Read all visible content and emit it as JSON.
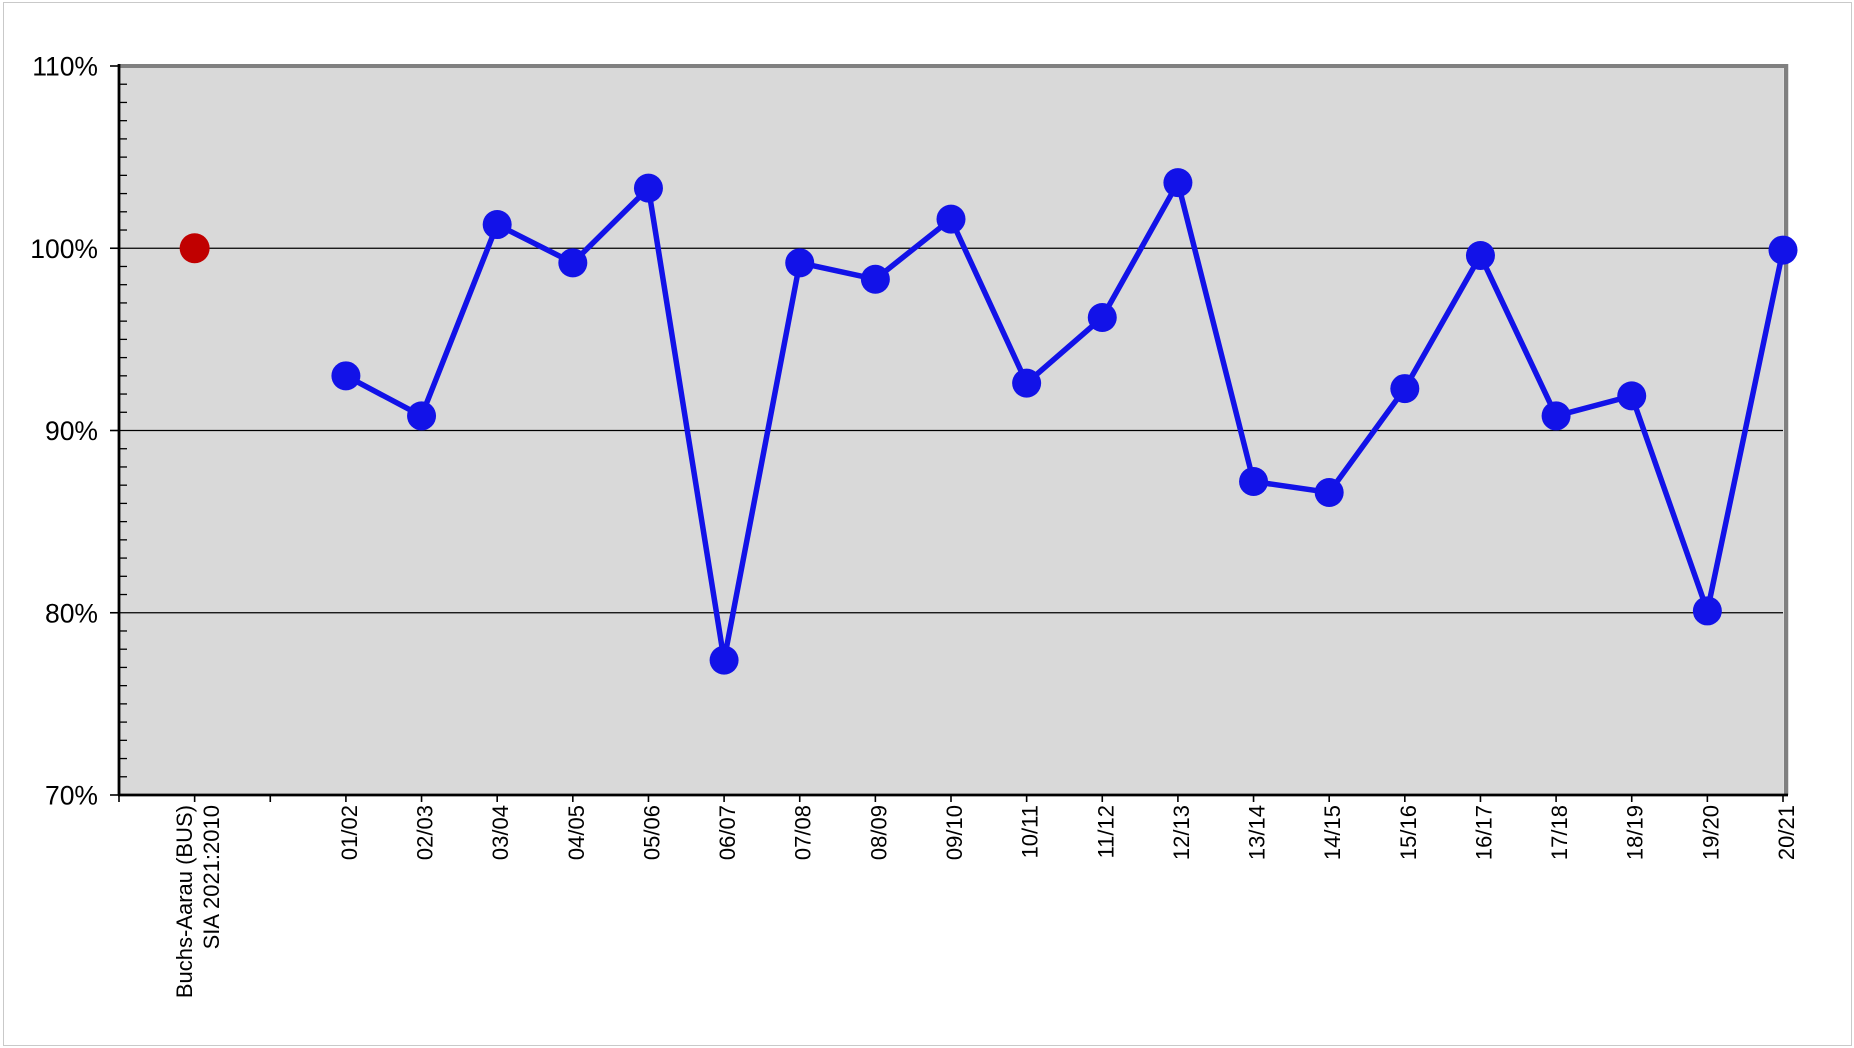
{
  "page": {
    "background_color": "#ffffff",
    "outer_border_color": "#c9c9c9"
  },
  "chart_data": {
    "type": "line",
    "title": "",
    "legend": "none",
    "grid": "horizontal-major",
    "plot": {
      "background_color": "#d9d9d9",
      "border_color": "#808080",
      "gridline_color": "#000000",
      "axis_color": "#000000"
    },
    "y_axis": {
      "min": 70,
      "max": 110,
      "major_step": 10,
      "minor_step": 1,
      "unit": "%",
      "tick_labels": [
        "70%",
        "80%",
        "90%",
        "100%",
        "110%"
      ]
    },
    "x_axis": {
      "categories": [
        "",
        "Buchs-Aarau (BUS)\nSIA 2021:2010",
        "",
        "01/02",
        "02/03",
        "03/04",
        "04/05",
        "05/06",
        "06/07",
        "07/08",
        "08/09",
        "09/10",
        "10/11",
        "11/12",
        "12/13",
        "13/14",
        "14/15",
        "15/16",
        "16/17",
        "17/18",
        "18/19",
        "19/20",
        "20/21"
      ]
    },
    "series": [
      {
        "role": "reference-point",
        "color": "#c00000",
        "draw_line": false,
        "marker": "circle",
        "marker_radius": 15,
        "points": [
          {
            "category": "Buchs-Aarau (BUS) SIA 2021:2010",
            "category_index": 1,
            "value": 100.0
          }
        ]
      },
      {
        "role": "yearly-index-line",
        "color": "#1212e8",
        "draw_line": true,
        "line_width": 5.5,
        "marker": "circle",
        "marker_radius": 14.5,
        "points": [
          {
            "category": "01/02",
            "category_index": 3,
            "value": 93.0
          },
          {
            "category": "02/03",
            "category_index": 4,
            "value": 90.8
          },
          {
            "category": "03/04",
            "category_index": 5,
            "value": 101.3
          },
          {
            "category": "04/05",
            "category_index": 6,
            "value": 99.2
          },
          {
            "category": "05/06",
            "category_index": 7,
            "value": 103.3
          },
          {
            "category": "06/07",
            "category_index": 8,
            "value": 77.4
          },
          {
            "category": "07/08",
            "category_index": 9,
            "value": 99.2
          },
          {
            "category": "08/09",
            "category_index": 10,
            "value": 98.3
          },
          {
            "category": "09/10",
            "category_index": 11,
            "value": 101.6
          },
          {
            "category": "10/11",
            "category_index": 12,
            "value": 92.6
          },
          {
            "category": "11/12",
            "category_index": 13,
            "value": 96.2
          },
          {
            "category": "12/13",
            "category_index": 14,
            "value": 103.6
          },
          {
            "category": "13/14",
            "category_index": 15,
            "value": 87.2
          },
          {
            "category": "14/15",
            "category_index": 16,
            "value": 86.6
          },
          {
            "category": "15/16",
            "category_index": 17,
            "value": 92.3
          },
          {
            "category": "16/17",
            "category_index": 18,
            "value": 99.6
          },
          {
            "category": "17/18",
            "category_index": 19,
            "value": 90.8
          },
          {
            "category": "18/19",
            "category_index": 20,
            "value": 91.9
          },
          {
            "category": "19/20",
            "category_index": 21,
            "value": 80.1
          },
          {
            "category": "20/21",
            "category_index": 22,
            "value": 99.9
          }
        ]
      }
    ]
  }
}
